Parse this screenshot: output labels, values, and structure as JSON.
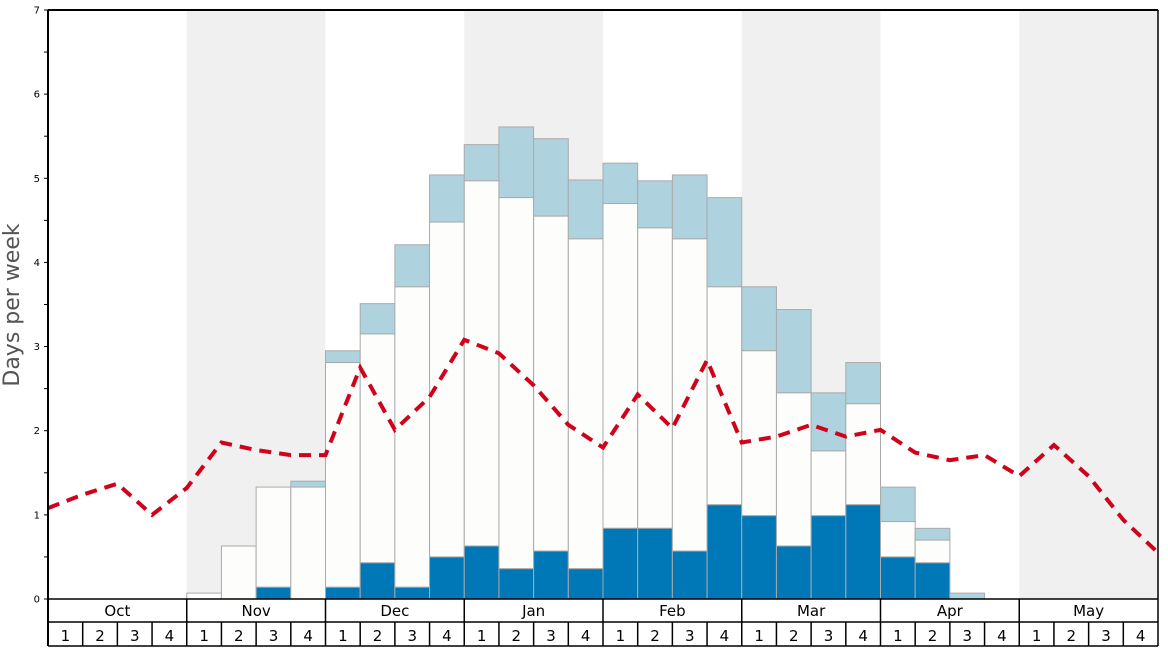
{
  "chart_data": {
    "type": "bar",
    "title": "",
    "ylabel": "Days per week",
    "xlabel": "",
    "ylim": [
      0,
      7
    ],
    "yticks": [
      "0",
      "1",
      "2",
      "3",
      "4",
      "5",
      "6",
      "7"
    ],
    "months": [
      "Oct",
      "Nov",
      "Dec",
      "Jan",
      "Feb",
      "Mar",
      "Apr",
      "May"
    ],
    "shaded_months": [
      "Nov",
      "Jan",
      "Mar",
      "May"
    ],
    "week_labels": [
      "1",
      "2",
      "3",
      "4"
    ],
    "colors": {
      "bottom": "#0077b6",
      "middle": "#fdfdfb",
      "top": "#aed3df",
      "line": "#d0021b",
      "shade": "#f0f0f0",
      "bar_stroke": "#aaaaaa"
    },
    "series": [
      {
        "name": "bottom",
        "values": [
          0,
          0,
          0,
          0,
          0,
          0,
          0.14,
          0,
          0.14,
          0.43,
          0.14,
          0.5,
          0.63,
          0.36,
          0.57,
          0.36,
          0.84,
          0.84,
          0.57,
          1.12,
          0.99,
          0.63,
          0.99,
          1.12,
          0.5,
          0.43,
          0,
          0,
          0,
          0,
          0,
          0
        ]
      },
      {
        "name": "middle_top",
        "values": [
          0,
          0,
          0,
          0,
          0.07,
          0.63,
          1.33,
          1.33,
          2.81,
          3.15,
          3.71,
          4.48,
          4.97,
          4.77,
          4.55,
          4.28,
          4.7,
          4.41,
          4.28,
          3.71,
          2.95,
          2.45,
          1.76,
          2.32,
          0.92,
          0.7,
          0,
          0,
          0,
          0,
          0,
          0
        ]
      },
      {
        "name": "top",
        "values": [
          0,
          0,
          0,
          0,
          0.07,
          0.63,
          1.33,
          1.4,
          2.95,
          3.51,
          4.21,
          5.04,
          5.4,
          5.61,
          5.47,
          4.98,
          5.18,
          4.97,
          5.04,
          4.77,
          3.71,
          3.44,
          2.45,
          2.81,
          1.33,
          0.84,
          0.07,
          0,
          0,
          0,
          0,
          0
        ]
      },
      {
        "name": "average",
        "type": "line",
        "values": [
          1.08,
          1.24,
          1.37,
          1.0,
          1.32,
          1.86,
          1.77,
          1.71,
          1.71,
          2.75,
          2.01,
          2.4,
          3.08,
          2.92,
          2.54,
          2.07,
          1.8,
          2.43,
          2.03,
          2.84,
          1.86,
          1.93,
          2.07,
          1.93,
          2.01,
          1.74,
          1.65,
          1.71,
          1.46,
          1.83,
          1.46,
          0.94,
          0.55
        ]
      }
    ]
  }
}
